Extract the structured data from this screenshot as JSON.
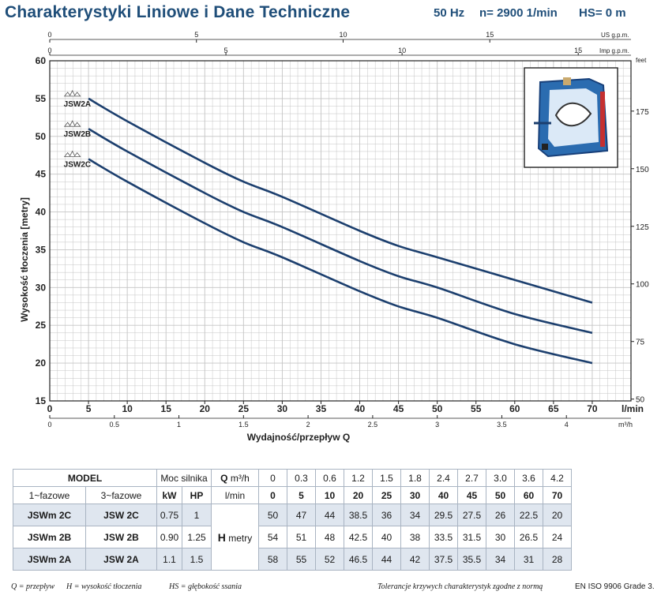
{
  "header": {
    "title": "Charakterystyki Liniowe i Dane Techniczne",
    "freq": "50 Hz",
    "rpm": "n= 2900  1/min",
    "hs": "HS= 0 m"
  },
  "chart_data": {
    "type": "line",
    "title": "Charakterystyki Liniowe i Dane Techniczne",
    "xlabel": "Wydajność/przepływ  Q",
    "ylabel": "Wysokość tłoczenia [metry]",
    "x_unit": "l/min",
    "xlim": [
      0,
      75
    ],
    "ylim": [
      15,
      60
    ],
    "x_ticks": [
      0,
      5,
      10,
      15,
      20,
      25,
      30,
      35,
      40,
      45,
      50,
      55,
      60,
      65,
      70
    ],
    "y_ticks": [
      15,
      20,
      25,
      30,
      35,
      40,
      45,
      50,
      55,
      60
    ],
    "top_axis_usgpm": {
      "label": "US g.p.m.",
      "ticks": [
        0,
        5,
        10,
        15
      ]
    },
    "top_axis_impgpm": {
      "label": "Imp g.p.m.",
      "ticks": [
        0,
        5,
        10,
        15
      ]
    },
    "bottom_axis_m3h": {
      "label": "m³/h",
      "ticks": [
        0,
        0.5,
        1,
        1.5,
        2,
        2.5,
        3,
        3.5,
        4
      ]
    },
    "right_axis_feet": {
      "label": "feet",
      "ticks": [
        50,
        75,
        100,
        125,
        150,
        175
      ]
    },
    "grid": true,
    "series": [
      {
        "name": "JSW2A",
        "x": [
          5,
          10,
          20,
          25,
          30,
          40,
          45,
          50,
          60,
          70
        ],
        "y": [
          55,
          52,
          46.5,
          44,
          42,
          37.5,
          35.5,
          34,
          31,
          28
        ]
      },
      {
        "name": "JSW2B",
        "x": [
          5,
          10,
          20,
          25,
          30,
          40,
          45,
          50,
          60,
          70
        ],
        "y": [
          51,
          48,
          42.5,
          40,
          38,
          33.5,
          31.5,
          30,
          26.5,
          24
        ]
      },
      {
        "name": "JSW2C",
        "x": [
          5,
          10,
          20,
          25,
          30,
          40,
          45,
          50,
          60,
          70
        ],
        "y": [
          47,
          44,
          38.5,
          36,
          34,
          29.5,
          27.5,
          26,
          22.5,
          20
        ]
      }
    ],
    "colors": {
      "curve": "#1c3f6e",
      "grid": "#c4c4c4",
      "title": "#1f4e79"
    }
  },
  "table": {
    "model_label": "MODEL",
    "power_label": "Moc silnika",
    "phase1_label": "1~fazowe",
    "phase3_label": "3~fazowe",
    "kw_label": "kW",
    "hp_label": "HP",
    "q_letter": "Q",
    "m3h_unit": "m³/h",
    "lmin_unit": "l/min",
    "q_m3h": [
      "0",
      "0.3",
      "0.6",
      "1.2",
      "1.5",
      "1.8",
      "2.4",
      "2.7",
      "3.0",
      "3.6",
      "4.2"
    ],
    "q_lmin": [
      "0",
      "5",
      "10",
      "20",
      "25",
      "30",
      "40",
      "45",
      "50",
      "60",
      "70"
    ],
    "h_letter": "H",
    "h_unit": "metry",
    "rows": [
      {
        "m1": "JSWm 2C",
        "m3": "JSW 2C",
        "kw": "0.75",
        "hp": "1",
        "h": [
          "50",
          "47",
          "44",
          "38.5",
          "36",
          "34",
          "29.5",
          "27.5",
          "26",
          "22.5",
          "20"
        ]
      },
      {
        "m1": "JSWm 2B",
        "m3": "JSW 2B",
        "kw": "0.90",
        "hp": "1.25",
        "h": [
          "54",
          "51",
          "48",
          "42.5",
          "40",
          "38",
          "33.5",
          "31.5",
          "30",
          "26.5",
          "24"
        ]
      },
      {
        "m1": "JSWm 2A",
        "m3": "JSW 2A",
        "kw": "1.1",
        "hp": "1.5",
        "h": [
          "58",
          "55",
          "52",
          "46.5",
          "44",
          "42",
          "37.5",
          "35.5",
          "34",
          "31",
          "28"
        ]
      }
    ]
  },
  "footer": {
    "q_def": "Q = przepływ",
    "h_def": "H = wysokość tłoczenia",
    "hs_def": "HS = głębokość ssania",
    "tolerance": "Tolerancje krzywych charakterystyk zgodne z normą",
    "standard": "EN ISO 9906 Grade 3."
  }
}
